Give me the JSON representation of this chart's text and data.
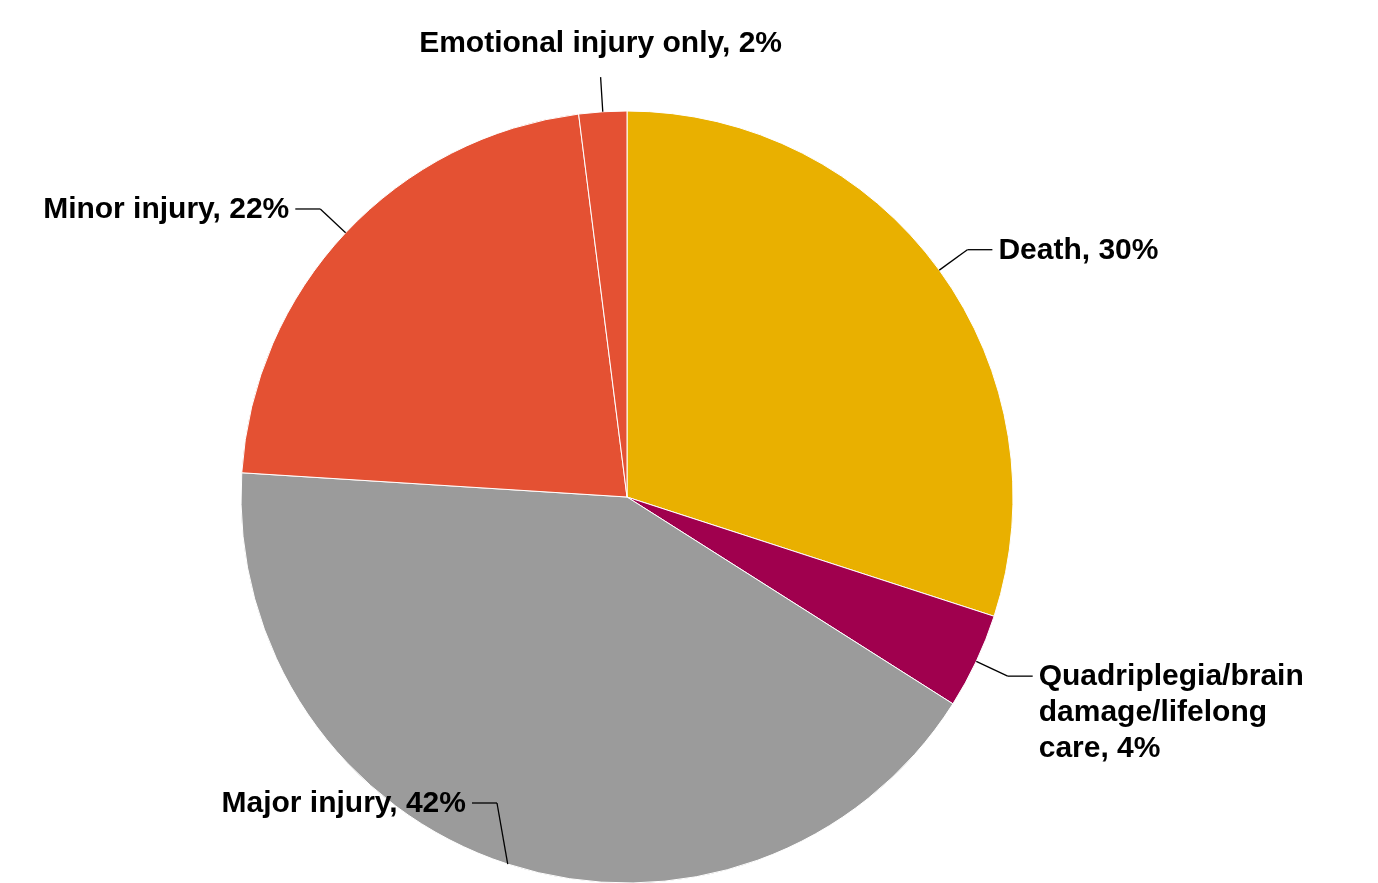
{
  "chart_data": {
    "type": "pie",
    "categories": [
      "Death",
      "Quadriplegia/brain damage/lifelong care",
      "Major injury",
      "Minor injury",
      "Emotional injury only"
    ],
    "values": [
      30,
      4,
      42,
      22,
      2
    ],
    "value_labels": [
      "30%",
      "4%",
      "42%",
      "22%",
      "2%"
    ],
    "colors": [
      "#e9b000",
      "#a0004e",
      "#9b9b9b",
      "#e45133",
      "#e45133"
    ]
  }
}
